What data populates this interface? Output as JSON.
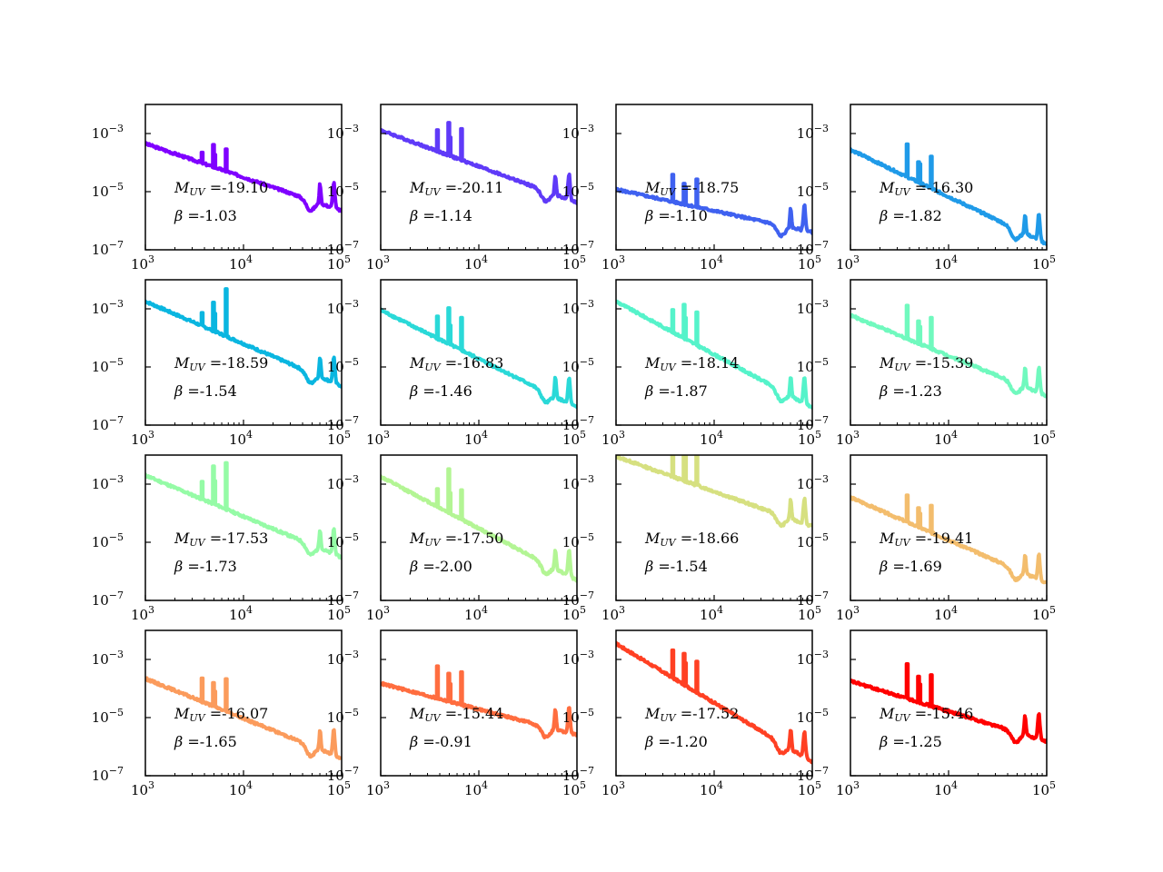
{
  "chart_data": {
    "type": "grid-of-line-plots",
    "rows": 4,
    "cols": 4,
    "xscale": "log",
    "yscale": "log",
    "xlim": [
      1000,
      100000
    ],
    "ylim": [
      1e-07,
      0.01
    ],
    "xticks": [
      1000,
      10000,
      100000
    ],
    "yticks": [
      1e-07,
      1e-05,
      0.001
    ],
    "tick_label_base": "10",
    "xtick_exponents": [
      "3",
      "4",
      "5"
    ],
    "ytick_exponents": [
      "−7",
      "−5",
      "−3"
    ],
    "annotation_prefix_muv": "M",
    "annotation_prefix_muv_sub": "UV",
    "annotation_eq": " =",
    "annotation_prefix_beta": "β =",
    "lines_at_x": [
      3727,
      4861,
      5007,
      6563
    ],
    "panels": [
      {
        "muv": "-19.10",
        "beta": "-1.03",
        "color": "#7f00ff",
        "y0": 0.00045,
        "yend": 2.2e-06,
        "lines": [
          2.2,
          6,
          2.8,
          6
        ]
      },
      {
        "muv": "-20.11",
        "beta": "-1.14",
        "color": "#5f3af8",
        "y0": 0.0013,
        "yend": 4.2e-06,
        "lines": [
          5,
          12,
          4,
          12
        ]
      },
      {
        "muv": "-18.75",
        "beta": "-1.10",
        "color": "#3f61f0",
        "y0": 1.2e-05,
        "yend": 4e-07,
        "lines": [
          8,
          5,
          4,
          9
        ]
      },
      {
        "muv": "-16.30",
        "beta": "-1.82",
        "color": "#1f9ae8",
        "y0": 0.00028,
        "yend": 1.6e-07,
        "lines": [
          12,
          5,
          4,
          12
        ]
      },
      {
        "muv": "-18.59",
        "beta": "-1.54",
        "color": "#0ab6e0",
        "y0": 0.0018,
        "yend": 2.2e-06,
        "lines": [
          2.5,
          10,
          4,
          40
        ]
      },
      {
        "muv": "-16.83",
        "beta": "-1.46",
        "color": "#2ad9d8",
        "y0": 0.0009,
        "yend": 4e-07,
        "lines": [
          6,
          16,
          4,
          12
        ]
      },
      {
        "muv": "-18.14",
        "beta": "-1.87",
        "color": "#55f3ca",
        "y0": 0.0018,
        "yend": 4e-07,
        "lines": [
          6,
          14,
          5,
          12
        ]
      },
      {
        "muv": "-15.39",
        "beta": "-1.23",
        "color": "#70f9be",
        "y0": 0.0006,
        "yend": 1e-06,
        "lines": [
          14,
          6,
          4,
          12
        ]
      },
      {
        "muv": "-17.53",
        "beta": "-1.73",
        "color": "#95fba6",
        "y0": 0.002,
        "yend": 3e-06,
        "lines": [
          4,
          18,
          6,
          40
        ]
      },
      {
        "muv": "-17.50",
        "beta": "-2.00",
        "color": "#b3f594",
        "y0": 0.0018,
        "yend": 5e-07,
        "lines": [
          4,
          30,
          5,
          10
        ]
      },
      {
        "muv": "-18.66",
        "beta": "-1.54",
        "color": "#d6e080",
        "y0": 0.009,
        "yend": 3.5e-05,
        "lines": [
          10,
          20,
          8,
          12
        ]
      },
      {
        "muv": "-19.41",
        "beta": "-1.69",
        "color": "#f3bd6d",
        "y0": 0.00035,
        "yend": 4e-07,
        "lines": [
          8,
          4,
          3,
          8
        ]
      },
      {
        "muv": "-16.07",
        "beta": "-1.65",
        "color": "#fb9b5c",
        "y0": 0.00022,
        "yend": 4e-07,
        "lines": [
          6,
          6,
          3,
          12
        ]
      },
      {
        "muv": "-15.44",
        "beta": "-0.91",
        "color": "#ff6d3f",
        "y0": 0.00015,
        "yend": 2.5e-06,
        "lines": [
          12,
          9,
          4,
          12
        ]
      },
      {
        "muv": "-17.52",
        "beta": "-1.20",
        "color": "#ff4023",
        "y0": 0.0035,
        "yend": 3e-07,
        "lines": [
          8,
          12,
          5,
          12
        ]
      },
      {
        "muv": "-15.46",
        "beta": "-1.25",
        "color": "#ff0000",
        "y0": 0.00018,
        "yend": 1.5e-06,
        "lines": [
          14,
          7,
          4,
          12
        ]
      }
    ]
  }
}
